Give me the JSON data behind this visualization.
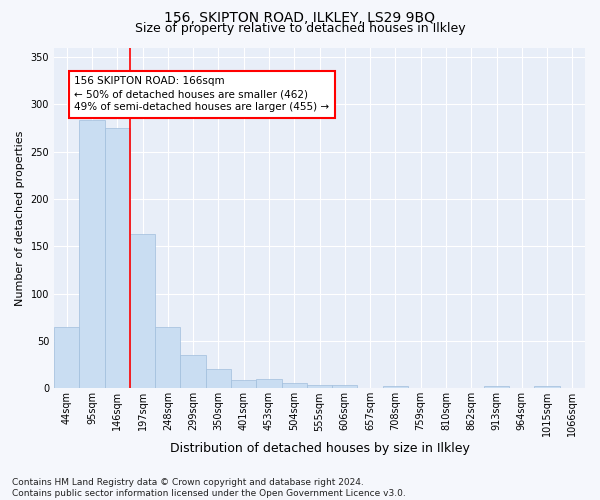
{
  "title_line1": "156, SKIPTON ROAD, ILKLEY, LS29 9BQ",
  "title_line2": "Size of property relative to detached houses in Ilkley",
  "xlabel": "Distribution of detached houses by size in Ilkley",
  "ylabel": "Number of detached properties",
  "footnote": "Contains HM Land Registry data © Crown copyright and database right 2024.\nContains public sector information licensed under the Open Government Licence v3.0.",
  "categories": [
    "44sqm",
    "95sqm",
    "146sqm",
    "197sqm",
    "248sqm",
    "299sqm",
    "350sqm",
    "401sqm",
    "453sqm",
    "504sqm",
    "555sqm",
    "606sqm",
    "657sqm",
    "708sqm",
    "759sqm",
    "810sqm",
    "862sqm",
    "913sqm",
    "964sqm",
    "1015sqm",
    "1066sqm"
  ],
  "values": [
    65,
    283,
    275,
    163,
    65,
    35,
    20,
    9,
    10,
    6,
    4,
    3,
    0,
    2,
    0,
    0,
    0,
    2,
    0,
    2,
    0
  ],
  "bar_color": "#c9ddf2",
  "bar_edge_color": "#a0bedd",
  "vline_x": 2.5,
  "vline_color": "red",
  "annotation_text": "156 SKIPTON ROAD: 166sqm\n← 50% of detached houses are smaller (462)\n49% of semi-detached houses are larger (455) →",
  "annotation_box_color": "red",
  "ylim": [
    0,
    360
  ],
  "yticks": [
    0,
    50,
    100,
    150,
    200,
    250,
    300,
    350
  ],
  "bg_color": "#e8eef8",
  "grid_color": "#ffffff",
  "fig_bg_color": "#f5f7fc",
  "title1_fontsize": 10,
  "title2_fontsize": 9,
  "xlabel_fontsize": 9,
  "ylabel_fontsize": 8,
  "tick_fontsize": 7,
  "annot_fontsize": 7.5,
  "footnote_fontsize": 6.5
}
